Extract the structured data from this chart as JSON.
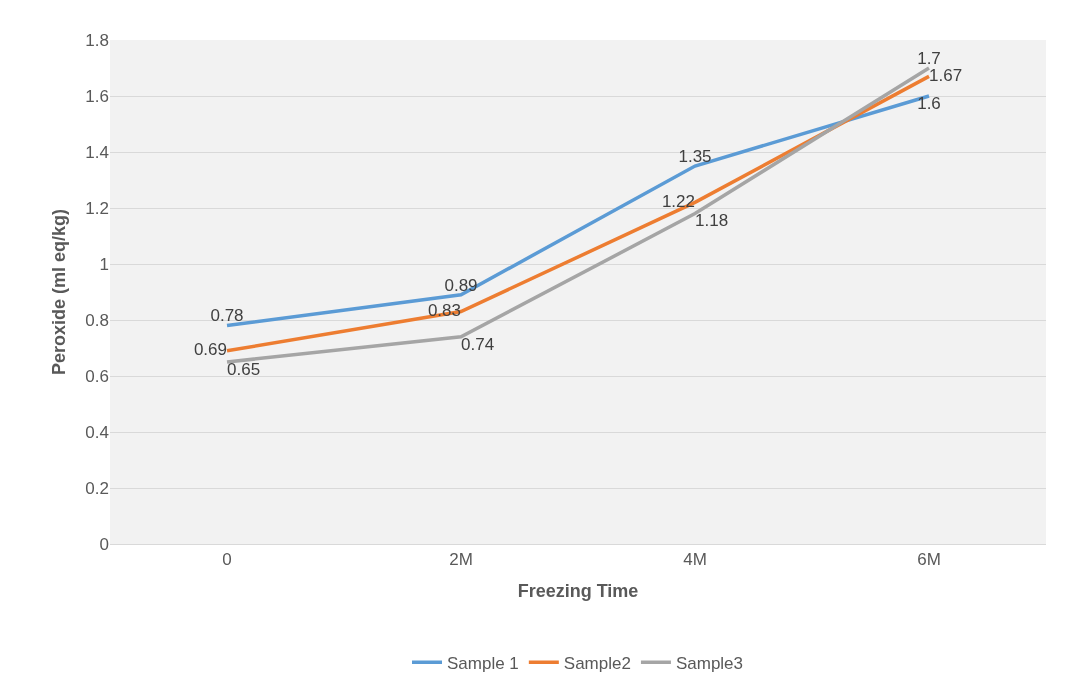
{
  "chart_data": {
    "type": "line",
    "xlabel": "Freezing Time",
    "ylabel": "Peroxide (ml eq/kg)",
    "categories": [
      "0",
      "2M",
      "4M",
      "6M"
    ],
    "series": [
      {
        "name": "Sample 1",
        "color": "#5b9bd5",
        "values": [
          0.78,
          0.89,
          1.35,
          1.6
        ]
      },
      {
        "name": "Sample2",
        "color": "#ed7d31",
        "values": [
          0.69,
          0.83,
          1.22,
          1.67
        ]
      },
      {
        "name": "Sample3",
        "color": "#a5a5a5",
        "values": [
          0.65,
          0.74,
          1.18,
          1.7
        ]
      }
    ],
    "ylim": [
      0,
      1.8
    ],
    "yticks": [
      0,
      0.2,
      0.4,
      0.6,
      0.8,
      1,
      1.2,
      1.4,
      1.6,
      1.8
    ],
    "grid": "y",
    "legend": "bottom",
    "data_labels": true,
    "marker": "none",
    "line_style": "solid"
  }
}
